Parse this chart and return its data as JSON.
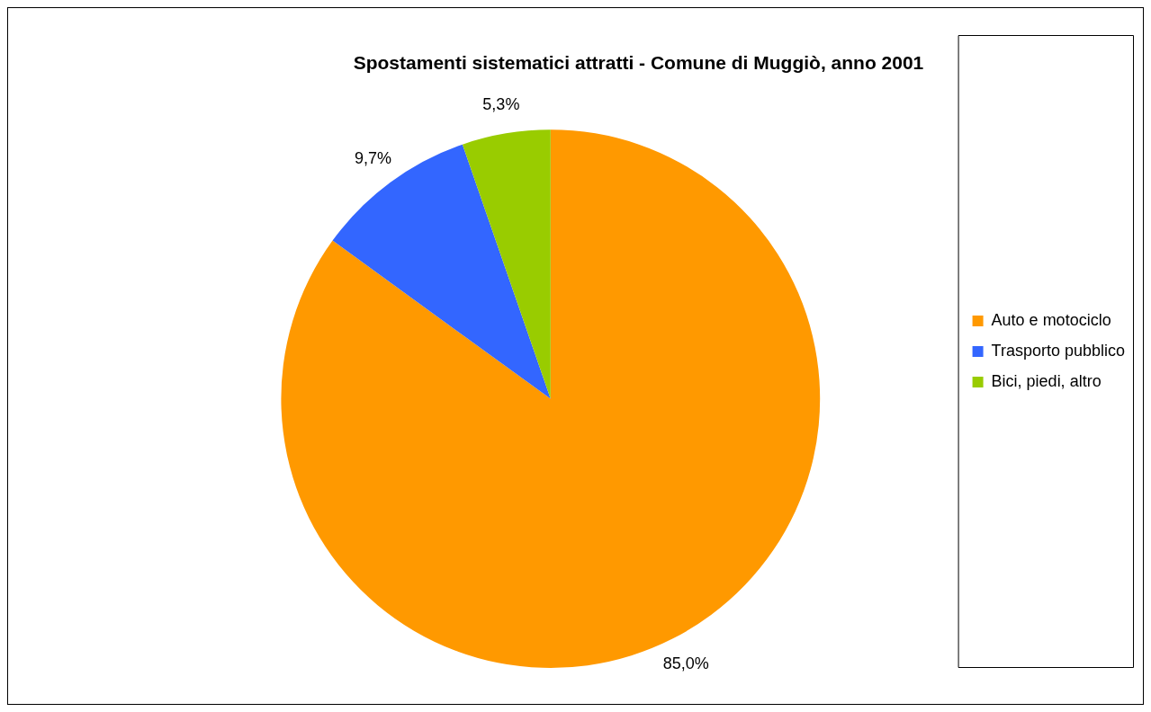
{
  "chart_data": {
    "type": "pie",
    "title": "Spostamenti sistematici attratti - Comune di Muggiò, anno 2001",
    "categories": [
      "Auto e motociclo",
      "Trasporto pubblico",
      "Bici, piedi, altro"
    ],
    "values": [
      85.0,
      9.7,
      5.3
    ],
    "colors": [
      "#ff9900",
      "#3366ff",
      "#99cc00"
    ],
    "value_labels": [
      "85,0%",
      "9,7%",
      "5,3%"
    ],
    "legend": "right"
  }
}
